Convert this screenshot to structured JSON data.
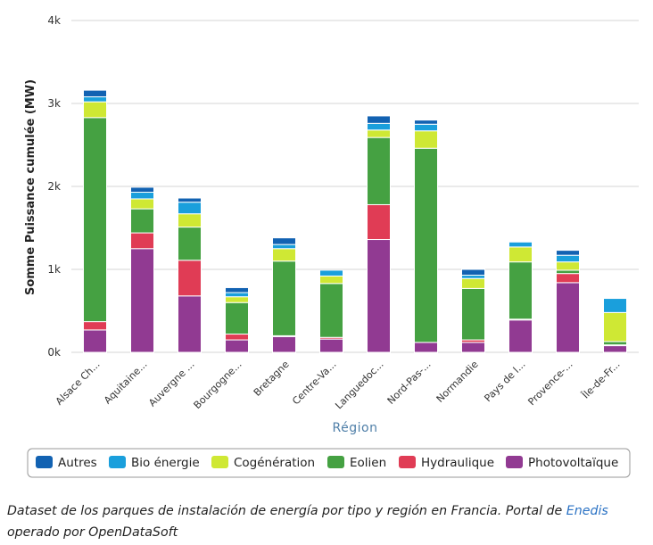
{
  "chart_data": {
    "type": "bar",
    "stacked": true,
    "title": "",
    "xlabel": "Région",
    "ylabel": "Somme Puissance cumulée (MW)",
    "ylim": [
      0,
      4000
    ],
    "y_ticks": [
      {
        "value": 0,
        "label": "0k"
      },
      {
        "value": 1000,
        "label": "1k"
      },
      {
        "value": 2000,
        "label": "2k"
      },
      {
        "value": 3000,
        "label": "3k"
      },
      {
        "value": 4000,
        "label": "4k"
      }
    ],
    "grid": true,
    "legend_position": "bottom",
    "categories": [
      "Alsace Ch...",
      "Aquitaine...",
      "Auvergne ...",
      "Bourgogne...",
      "Bretagne",
      "Centre-Va...",
      "Languedoc...",
      "Nord-Pas-...",
      "Normandie",
      "Pays de l...",
      "Provence-...",
      "Île-de-Fr..."
    ],
    "series": [
      {
        "name": "Photovoltaïque",
        "color": "#913a92",
        "values": [
          270,
          1250,
          680,
          150,
          190,
          160,
          1360,
          120,
          120,
          390,
          840,
          80
        ]
      },
      {
        "name": "Hydraulique",
        "color": "#e03c55",
        "values": [
          100,
          190,
          430,
          70,
          10,
          20,
          420,
          0,
          30,
          10,
          110,
          10
        ]
      },
      {
        "name": "Eolien",
        "color": "#45a142",
        "values": [
          2460,
          290,
          400,
          380,
          900,
          650,
          810,
          2340,
          620,
          690,
          40,
          40
        ]
      },
      {
        "name": "Cogénération",
        "color": "#cfe834",
        "values": [
          190,
          120,
          160,
          70,
          150,
          90,
          90,
          210,
          120,
          180,
          100,
          350
        ]
      },
      {
        "name": "Bio énergie",
        "color": "#1a9fdc",
        "values": [
          60,
          80,
          140,
          50,
          50,
          70,
          80,
          80,
          40,
          60,
          80,
          170
        ]
      },
      {
        "name": "Autres",
        "color": "#1262b2",
        "values": [
          80,
          60,
          50,
          60,
          80,
          0,
          90,
          50,
          70,
          0,
          60,
          0
        ]
      }
    ],
    "legend_order": [
      "Autres",
      "Bio énergie",
      "Cogénération",
      "Eolien",
      "Hydraulique",
      "Photovoltaïque"
    ]
  },
  "caption": {
    "before_link": "Dataset de los parques de instalación de energía por tipo y región en Francia. Portal de ",
    "link_text": "Enedis",
    "after_link": " operado por OpenDataSoft"
  },
  "colors": {
    "grid": "#d6d6d6",
    "axis_title_x": "#4f7fa8",
    "link": "#2a72c4"
  }
}
